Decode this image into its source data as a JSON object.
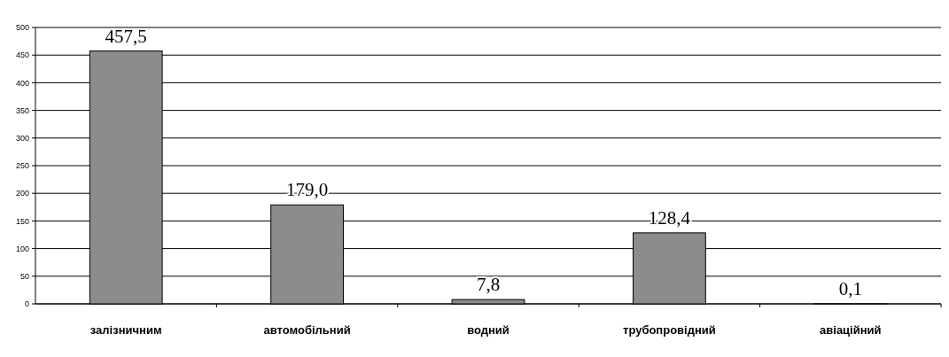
{
  "chart_data": {
    "type": "bar",
    "categories": [
      "залізничним",
      "автомобільний",
      "водний",
      "трубопровідний",
      "авіаційний"
    ],
    "values": [
      457.5,
      179.0,
      7.8,
      128.4,
      0.1
    ],
    "value_labels": [
      "457,5",
      "179,0",
      "7,8",
      "128,4",
      "0,1"
    ],
    "color": "#8c8c8c",
    "ylim": [
      0,
      500
    ],
    "yticks": [
      0,
      50,
      100,
      150,
      200,
      250,
      300,
      350,
      400,
      450,
      500
    ],
    "grid": "y"
  }
}
